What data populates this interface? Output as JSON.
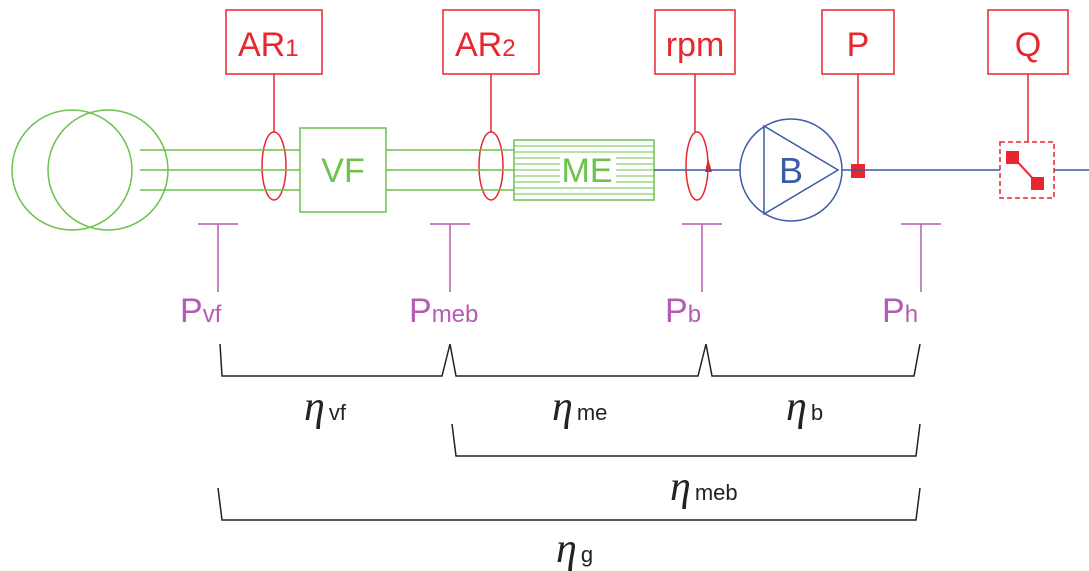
{
  "colors": {
    "sensor": "#e8262e",
    "electrical": "#6cc24a",
    "pump": "#3b5aa8",
    "power": "#b45cb4",
    "efficiency": "#222222",
    "shaft": "#3b5aa8"
  },
  "sensors": [
    {
      "id": "ar1",
      "main": "AR",
      "sub": "1"
    },
    {
      "id": "ar2",
      "main": "AR",
      "sub": "2"
    },
    {
      "id": "rpm",
      "main": "rpm",
      "sub": ""
    },
    {
      "id": "p",
      "main": "P",
      "sub": ""
    },
    {
      "id": "q",
      "main": "Q",
      "sub": ""
    }
  ],
  "components": {
    "vf": "VF",
    "me": "ME",
    "pump": "B"
  },
  "powers": [
    {
      "id": "pvf",
      "main": "P",
      "sub": "vf"
    },
    {
      "id": "pmeb",
      "main": "P",
      "sub": "meb"
    },
    {
      "id": "pb",
      "main": "P",
      "sub": "b"
    },
    {
      "id": "ph",
      "main": "P",
      "sub": "h"
    }
  ],
  "efficiencies": [
    {
      "id": "eta-vf",
      "symbol": "η",
      "sub": "vf"
    },
    {
      "id": "eta-me",
      "symbol": "η",
      "sub": "me"
    },
    {
      "id": "eta-b",
      "symbol": "η",
      "sub": "b"
    },
    {
      "id": "eta-meb",
      "symbol": "η",
      "sub": "meb"
    },
    {
      "id": "eta-g",
      "symbol": "η",
      "sub": "g"
    }
  ]
}
